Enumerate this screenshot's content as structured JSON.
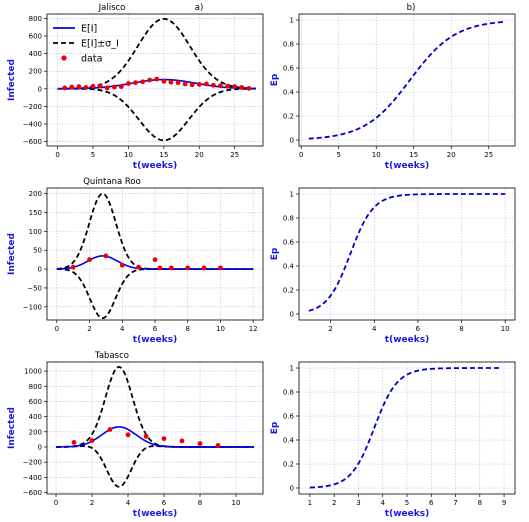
{
  "chart_data": [
    {
      "type": "line",
      "title": "Jalisco",
      "panel_label": "a)",
      "xlabel": "t(weeks)",
      "ylabel": "Infected",
      "xlim": [
        -1.5,
        29
      ],
      "ylim": [
        -650,
        850
      ],
      "xticks": [
        0,
        5,
        10,
        15,
        20,
        25
      ],
      "yticks": [
        -600,
        -400,
        -200,
        0,
        200,
        400,
        600,
        800
      ],
      "grid": true,
      "legend": {
        "position": "top-left",
        "entries": [
          "E[I]",
          "E[I]±σ_I",
          "data"
        ]
      },
      "peak_t": 15,
      "mean_peak": 105,
      "mean_width": 4.5,
      "sigma_peak": 690,
      "sigma_width": 3.6,
      "t_start": 0,
      "t_end": 28,
      "series": [
        {
          "name": "E[I]",
          "style": "solid",
          "color": "#0000ee",
          "role": "mean"
        },
        {
          "name": "E[I]±σ_I",
          "style": "dashed",
          "color": "#000000",
          "role": "band"
        },
        {
          "name": "data",
          "style": "points",
          "color": "#ee0000",
          "x": [
            1,
            2,
            3,
            4,
            5,
            6,
            7,
            8,
            9,
            10,
            11,
            12,
            13,
            14,
            15,
            16,
            17,
            18,
            19,
            20,
            21,
            22,
            23,
            24,
            25,
            26,
            27
          ],
          "y": [
            10,
            20,
            25,
            15,
            30,
            35,
            10,
            20,
            25,
            60,
            70,
            80,
            100,
            110,
            85,
            75,
            70,
            55,
            45,
            50,
            55,
            40,
            35,
            30,
            25,
            15,
            5
          ]
        }
      ]
    },
    {
      "type": "line",
      "title": "",
      "panel_label": "b)",
      "xlabel": "t(weeks)",
      "ylabel": "Ep",
      "xlim": [
        -0.3,
        28.5
      ],
      "ylim": [
        -0.05,
        1.05
      ],
      "xticks": [
        0,
        5,
        10,
        15,
        20,
        25
      ],
      "yticks": [
        0.0,
        0.2,
        0.4,
        0.6,
        0.8,
        1.0
      ],
      "grid": true,
      "t_start": 1,
      "t_end": 27,
      "mid": 14.5,
      "rate": 0.33,
      "series": [
        {
          "name": "",
          "style": "dashed",
          "color": "#0000cc"
        }
      ]
    },
    {
      "type": "line",
      "title": "Quintana Roo",
      "panel_label": "",
      "xlabel": "t(weeks)",
      "ylabel": "Infected",
      "xlim": [
        -0.6,
        12.6
      ],
      "ylim": [
        -135,
        215
      ],
      "xticks": [
        0,
        2,
        4,
        6,
        8,
        10,
        12
      ],
      "yticks": [
        -100,
        -50,
        0,
        50,
        100,
        150,
        200
      ],
      "grid": true,
      "peak_t": 2.8,
      "mean_peak": 35,
      "mean_width": 0.9,
      "sigma_peak": 165,
      "sigma_width": 0.8,
      "t_start": 0,
      "t_end": 12,
      "series": [
        {
          "name": "E[I]",
          "style": "solid",
          "color": "#0000ee",
          "role": "mean"
        },
        {
          "name": "E[I]±σ_I",
          "style": "dashed",
          "color": "#000000",
          "role": "band"
        },
        {
          "name": "data",
          "style": "points",
          "color": "#ee0000",
          "x": [
            1,
            2,
            3,
            4,
            5,
            6,
            6.3,
            7,
            8,
            9,
            10
          ],
          "y": [
            5,
            25,
            35,
            10,
            5,
            25,
            3,
            3,
            3,
            3,
            3
          ]
        }
      ]
    },
    {
      "type": "line",
      "title": "",
      "panel_label": "",
      "xlabel": "t(weeks)",
      "ylabel": "Ep",
      "xlim": [
        0.55,
        10.45
      ],
      "ylim": [
        -0.05,
        1.05
      ],
      "xticks": [
        2,
        4,
        6,
        8,
        10
      ],
      "yticks": [
        0.0,
        0.2,
        0.4,
        0.6,
        0.8,
        1.0
      ],
      "grid": true,
      "t_start": 1,
      "t_end": 10,
      "mid": 2.9,
      "rate": 1.9,
      "series": [
        {
          "name": "",
          "style": "dashed",
          "color": "#0000cc"
        }
      ]
    },
    {
      "type": "line",
      "title": "Tabasco",
      "panel_label": "",
      "xlabel": "t(weeks)",
      "ylabel": "Infected",
      "xlim": [
        -0.5,
        11.5
      ],
      "ylim": [
        -620,
        1120
      ],
      "xticks": [
        0,
        2,
        4,
        6,
        8,
        10
      ],
      "yticks": [
        -600,
        -400,
        -200,
        0,
        200,
        400,
        600,
        800,
        1000
      ],
      "grid": true,
      "peak_t": 3.5,
      "mean_peak": 265,
      "mean_width": 0.95,
      "sigma_peak": 790,
      "sigma_width": 0.72,
      "t_start": 0,
      "t_end": 11,
      "series": [
        {
          "name": "E[I]",
          "style": "solid",
          "color": "#0000ee",
          "role": "mean"
        },
        {
          "name": "E[I]±σ_I",
          "style": "dashed",
          "color": "#000000",
          "role": "band"
        },
        {
          "name": "data",
          "style": "points",
          "color": "#ee0000",
          "x": [
            1,
            2,
            3,
            4,
            5,
            6,
            7,
            8,
            9
          ],
          "y": [
            60,
            85,
            230,
            160,
            140,
            110,
            80,
            45,
            20
          ]
        }
      ]
    },
    {
      "type": "line",
      "title": "",
      "panel_label": "",
      "xlabel": "t(weeks)",
      "ylabel": "Ep",
      "xlim": [
        0.55,
        9.45
      ],
      "ylim": [
        -0.05,
        1.05
      ],
      "xticks": [
        1,
        2,
        3,
        4,
        5,
        6,
        7,
        8,
        9
      ],
      "yticks": [
        0.0,
        0.2,
        0.4,
        0.6,
        0.8,
        1.0
      ],
      "grid": true,
      "t_start": 1,
      "t_end": 8.8,
      "mid": 3.65,
      "rate": 2.1,
      "series": [
        {
          "name": "",
          "style": "dashed",
          "color": "#0000cc"
        }
      ]
    }
  ]
}
